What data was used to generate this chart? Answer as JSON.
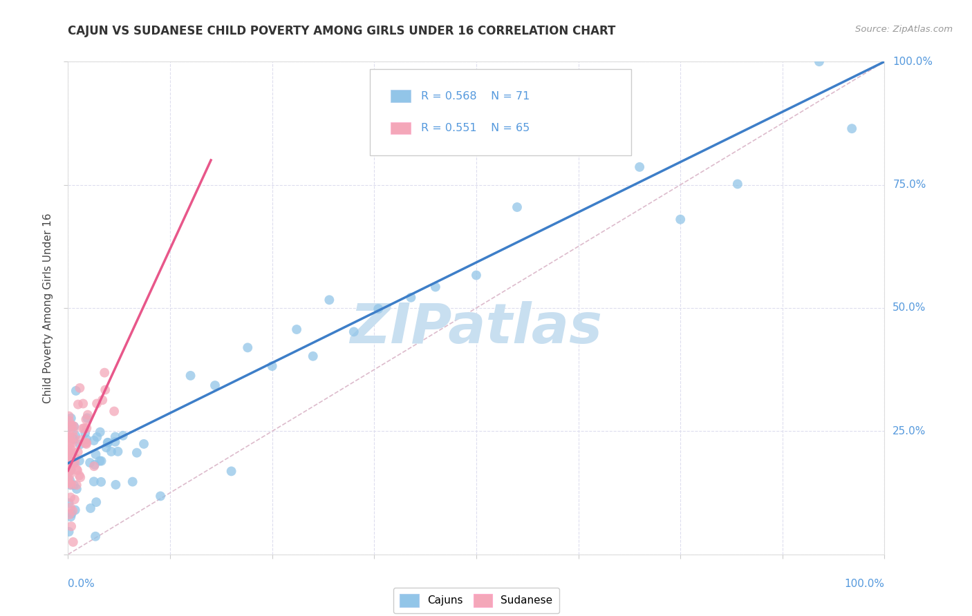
{
  "title": "CAJUN VS SUDANESE CHILD POVERTY AMONG GIRLS UNDER 16 CORRELATION CHART",
  "source": "Source: ZipAtlas.com",
  "ylabel": "Child Poverty Among Girls Under 16",
  "legend_cajun_label": "Cajuns",
  "legend_sudanese_label": "Sudanese",
  "cajun_R": "0.568",
  "cajun_N": "71",
  "sudanese_R": "0.551",
  "sudanese_N": "65",
  "cajun_color": "#92C5E8",
  "sudanese_color": "#F4A7B9",
  "cajun_line_color": "#3D7EC8",
  "sudanese_line_color": "#E8578A",
  "ref_line_color": "#DDBBCC",
  "grid_color": "#DDDDEE",
  "watermark_color": "#C8DFF0",
  "background_color": "#FFFFFF",
  "tick_label_color": "#5599DD",
  "ylabel_color": "#444444",
  "title_color": "#333333",
  "source_color": "#999999",
  "cajun_line_x0": 0.0,
  "cajun_line_y0": 0.185,
  "cajun_line_x1": 1.0,
  "cajun_line_y1": 1.0,
  "sudanese_line_x0": 0.0,
  "sudanese_line_y0": 0.17,
  "sudanese_line_x1": 0.175,
  "sudanese_line_y1": 0.8,
  "ref_line_x0": 0.0,
  "ref_line_y0": 0.0,
  "ref_line_x1": 1.0,
  "ref_line_y1": 1.0,
  "xlim": [
    0.0,
    1.0
  ],
  "ylim": [
    0.0,
    1.0
  ],
  "xticks": [
    0.0,
    0.125,
    0.25,
    0.375,
    0.5,
    0.625,
    0.75,
    0.875,
    1.0
  ],
  "yticks": [
    0.0,
    0.25,
    0.5,
    0.75,
    1.0
  ],
  "right_ytick_labels": [
    "25.0%",
    "50.0%",
    "75.0%",
    "100.0%"
  ],
  "seed": 123
}
